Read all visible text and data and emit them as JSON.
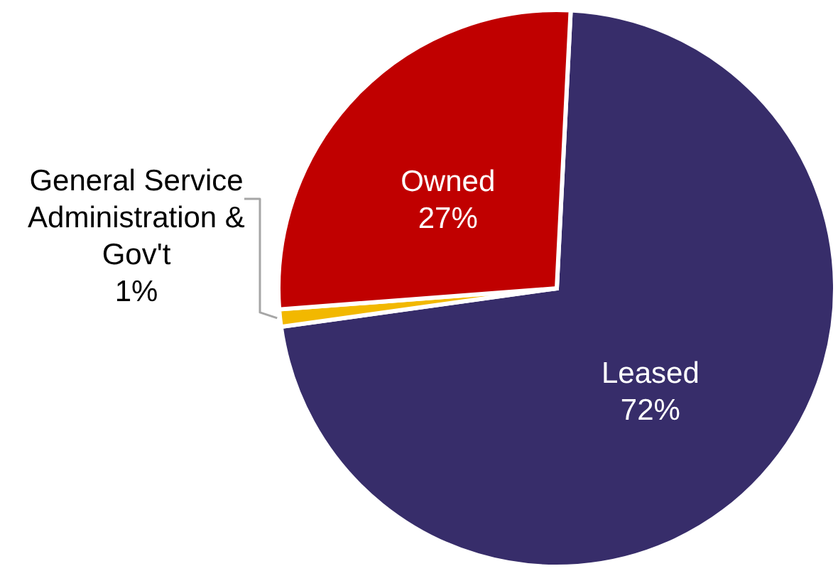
{
  "chart_data": {
    "type": "pie",
    "categories": [
      "Leased",
      "General Service Administration & Gov't",
      "Owned"
    ],
    "values": [
      72,
      1,
      27
    ],
    "colors": [
      "#372d6a",
      "#f2b800",
      "#c00000"
    ],
    "value_labels": [
      "72%",
      "1%",
      "27%"
    ]
  }
}
